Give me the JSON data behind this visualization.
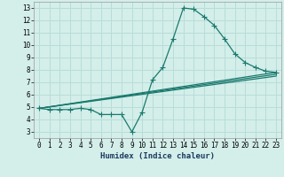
{
  "xlabel": "Humidex (Indice chaleur)",
  "background_color": "#d4eeea",
  "grid_color": "#b8ddd8",
  "line_color": "#1a7a6e",
  "xlim": [
    -0.5,
    23.5
  ],
  "ylim": [
    2.5,
    13.5
  ],
  "xticks": [
    0,
    1,
    2,
    3,
    4,
    5,
    6,
    7,
    8,
    9,
    10,
    11,
    12,
    13,
    14,
    15,
    16,
    17,
    18,
    19,
    20,
    21,
    22,
    23
  ],
  "yticks": [
    3,
    4,
    5,
    6,
    7,
    8,
    9,
    10,
    11,
    12,
    13
  ],
  "curve1_x": [
    0,
    1,
    2,
    3,
    4,
    5,
    6,
    7,
    8,
    9,
    10,
    11,
    12,
    13,
    14,
    15,
    16,
    17,
    18,
    19,
    20,
    21,
    22,
    23
  ],
  "curve1_y": [
    4.9,
    4.8,
    4.8,
    4.8,
    4.9,
    4.8,
    4.4,
    4.4,
    4.4,
    3.0,
    4.6,
    7.2,
    8.2,
    10.5,
    13.0,
    12.9,
    12.3,
    11.6,
    10.5,
    9.3,
    8.6,
    8.2,
    7.9,
    7.8
  ],
  "curve2_x": [
    0,
    23
  ],
  "curve2_y": [
    4.9,
    7.8
  ],
  "curve3_x": [
    0,
    23
  ],
  "curve3_y": [
    4.9,
    7.65
  ],
  "curve4_x": [
    0,
    23
  ],
  "curve4_y": [
    4.9,
    7.5
  ],
  "marker": "+",
  "markersize": 4,
  "linewidth": 0.9,
  "xlabel_color": "#1a3a5e",
  "xlabel_fontsize": 6.5,
  "tick_fontsize": 5.5
}
